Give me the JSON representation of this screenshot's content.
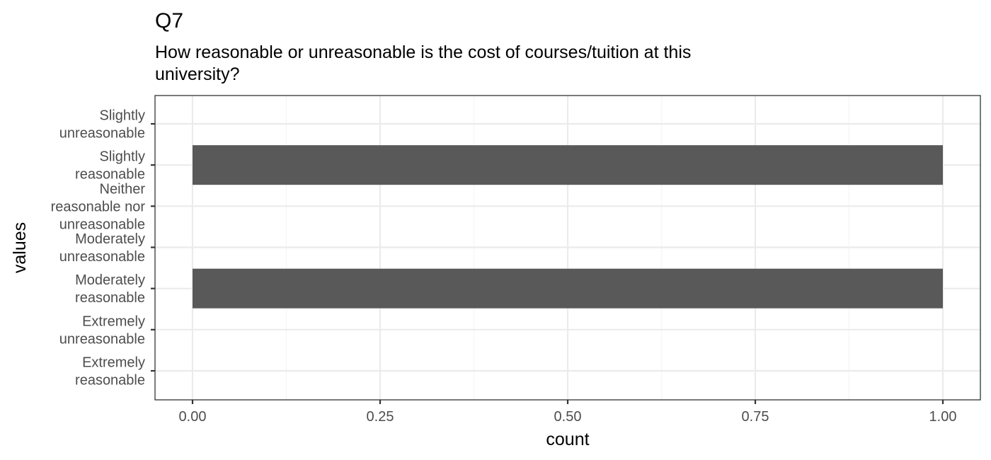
{
  "chart_data": {
    "type": "bar",
    "orientation": "horizontal",
    "title": "Q7",
    "subtitle_lines": [
      "How reasonable or unreasonable is the cost of courses/tuition at this",
      "university?"
    ],
    "xlabel": "count",
    "ylabel": "values",
    "xlim": [
      -0.05,
      1.05
    ],
    "x_ticks": [
      0.0,
      0.25,
      0.5,
      0.75,
      1.0
    ],
    "x_tick_labels": [
      "0.00",
      "0.25",
      "0.50",
      "0.75",
      "1.00"
    ],
    "categories": [
      {
        "lines": [
          "Slightly",
          "unreasonable"
        ],
        "value": 0
      },
      {
        "lines": [
          "Slightly",
          "reasonable"
        ],
        "value": 1
      },
      {
        "lines": [
          "Neither",
          "reasonable nor",
          "unreasonable"
        ],
        "value": 0
      },
      {
        "lines": [
          "Moderately",
          "unreasonable"
        ],
        "value": 0
      },
      {
        "lines": [
          "Moderately",
          "reasonable"
        ],
        "value": 1
      },
      {
        "lines": [
          "Extremely",
          "unreasonable"
        ],
        "value": 0
      },
      {
        "lines": [
          "Extremely",
          "reasonable"
        ],
        "value": 0
      }
    ],
    "grid": true,
    "colors": {
      "bar": "#595959",
      "grid_major": "#ebebeb",
      "grid_minor": "#f5f5f5",
      "panel_border": "#333333",
      "tick_text": "#4d4d4d"
    }
  }
}
